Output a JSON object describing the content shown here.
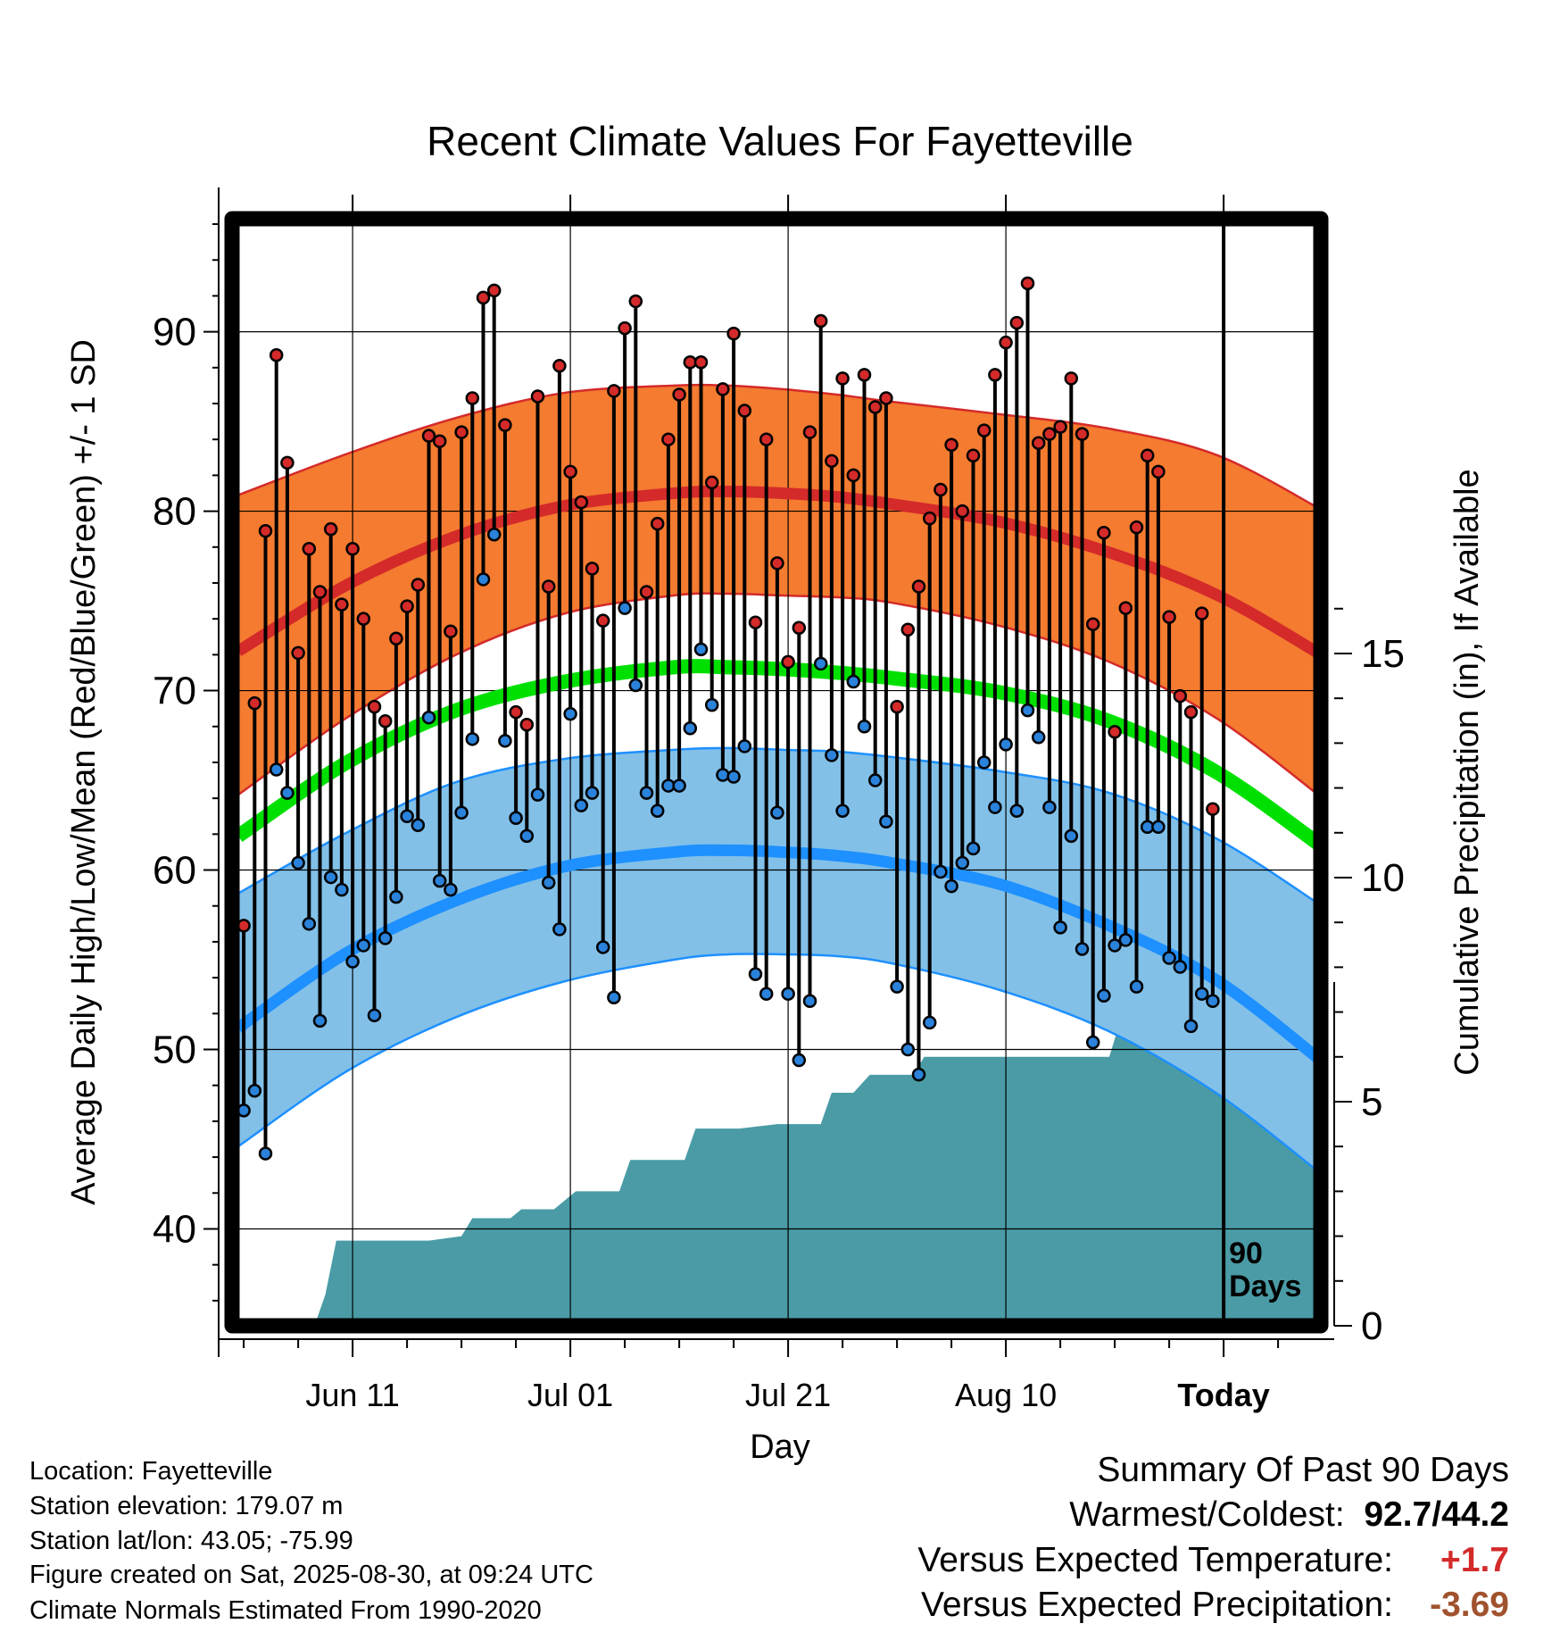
{
  "chart_data": {
    "type": "line",
    "title": "Recent Climate Values For Fayetteville",
    "xlabel": "Day",
    "ylabel": "Average Daily High/Low/Mean (Red/Blue/Green) +/- 1 SD",
    "y2label": "Cumulative Precipitation (in), If Available",
    "ylim": [
      34.6,
      96.3
    ],
    "y2lim": [
      0,
      24.7
    ],
    "yticks": [
      "40",
      "50",
      "60",
      "70",
      "80",
      "90"
    ],
    "y2ticks": [
      "0",
      "5",
      "10",
      "15"
    ],
    "xlim": [
      0,
      100
    ],
    "xticks": [
      {
        "day": 10.5,
        "label": "Jun 11"
      },
      {
        "day": 30.5,
        "label": "Jul 01"
      },
      {
        "day": 50.5,
        "label": "Jul 21"
      },
      {
        "day": 70.5,
        "label": "Aug 10"
      },
      {
        "day": 90.5,
        "label": "Today"
      }
    ],
    "today_marker": {
      "day": 90.5,
      "label_line1": "90",
      "label_line2": "Days"
    },
    "normal_days": [
      0,
      10,
      20,
      30,
      40,
      45,
      50,
      55,
      60,
      70,
      80,
      90,
      100
    ],
    "normal_high": [
      72.2,
      75.9,
      78.6,
      80.3,
      81.0,
      81.1,
      81.0,
      80.8,
      80.4,
      79.4,
      77.7,
      75.3,
      71.8
    ],
    "normal_high_upper": [
      80.9,
      83.2,
      85.2,
      86.6,
      87.0,
      87.0,
      86.8,
      86.5,
      86.1,
      85.4,
      84.6,
      83.1,
      79.9
    ],
    "normal_high_lower": [
      64.2,
      68.5,
      72.0,
      74.3,
      75.3,
      75.4,
      75.3,
      75.2,
      74.9,
      73.6,
      71.6,
      68.4,
      63.8
    ],
    "normal_mean": [
      61.9,
      66.0,
      68.9,
      70.5,
      71.3,
      71.3,
      71.2,
      71.0,
      70.7,
      69.9,
      68.3,
      65.4,
      61.1
    ],
    "normal_low": [
      51.2,
      55.4,
      58.3,
      60.2,
      61.0,
      61.1,
      61.0,
      60.8,
      60.4,
      59.2,
      56.9,
      53.8,
      49.1
    ],
    "normal_low_upper": [
      58.7,
      62.1,
      64.9,
      66.2,
      66.7,
      66.8,
      66.7,
      66.6,
      66.3,
      65.5,
      64.3,
      61.7,
      57.8
    ],
    "normal_low_lower": [
      44.6,
      48.8,
      51.8,
      53.8,
      55.0,
      55.3,
      55.3,
      55.2,
      54.8,
      53.3,
      51.0,
      47.5,
      42.8
    ],
    "daily_high": [
      56.9,
      69.3,
      78.9,
      88.7,
      82.7,
      72.1,
      77.9,
      75.5,
      79.0,
      74.8,
      77.9,
      74.0,
      69.1,
      68.3,
      72.9,
      74.7,
      75.9,
      84.2,
      83.9,
      73.3,
      84.4,
      86.3,
      91.9,
      92.3,
      84.8,
      68.8,
      68.1,
      86.4,
      75.8,
      88.1,
      82.2,
      80.5,
      76.8,
      73.9,
      86.7,
      90.2,
      91.7,
      75.5,
      79.3,
      84.0,
      86.5,
      88.3,
      88.3,
      81.6,
      86.8,
      89.9,
      85.6,
      73.8,
      84.0,
      77.1,
      71.6,
      73.5,
      84.4,
      90.6,
      82.8,
      87.4,
      82.0,
      87.6,
      85.8,
      86.3,
      69.1,
      73.4,
      75.8,
      79.6,
      81.2,
      83.7,
      80.0,
      83.1,
      84.5,
      87.6,
      89.4,
      90.5,
      92.7,
      83.8,
      84.3,
      84.7,
      87.4,
      84.3,
      73.7,
      78.8,
      67.7,
      74.6,
      79.1,
      83.1,
      82.2,
      74.1,
      69.7,
      68.8,
      74.3,
      63.4
    ],
    "daily_low": [
      46.6,
      47.7,
      44.2,
      65.6,
      64.3,
      60.4,
      57.0,
      51.6,
      59.6,
      58.9,
      54.9,
      55.8,
      51.9,
      56.2,
      58.5,
      63.0,
      62.5,
      68.5,
      59.4,
      58.9,
      63.2,
      67.3,
      76.2,
      78.7,
      67.2,
      62.9,
      61.9,
      64.2,
      59.3,
      56.7,
      68.7,
      63.6,
      64.3,
      55.7,
      52.9,
      74.6,
      70.3,
      64.3,
      63.3,
      64.7,
      64.7,
      67.9,
      72.3,
      69.2,
      65.3,
      65.2,
      66.9,
      54.2,
      53.1,
      63.2,
      53.1,
      49.4,
      52.7,
      71.5,
      66.4,
      63.3,
      70.5,
      68.0,
      65.0,
      62.7,
      53.5,
      50.0,
      48.6,
      51.5,
      59.9,
      59.1,
      60.4,
      61.2,
      66.0,
      63.5,
      67.0,
      63.3,
      68.9,
      67.4,
      63.5,
      56.8,
      61.9,
      55.6,
      50.4,
      53.0,
      55.8,
      56.1,
      53.5,
      62.4,
      62.4,
      55.1,
      54.6,
      51.3,
      53.1,
      52.7
    ],
    "precip_cumulative": [
      {
        "day": 0,
        "value": 0
      },
      {
        "day": 7,
        "value": 0
      },
      {
        "day": 8,
        "value": 0.7
      },
      {
        "day": 9,
        "value": 1.9
      },
      {
        "day": 17.5,
        "value": 1.9
      },
      {
        "day": 20.5,
        "value": 2.0
      },
      {
        "day": 21.5,
        "value": 2.4
      },
      {
        "day": 25,
        "value": 2.4
      },
      {
        "day": 26,
        "value": 2.6
      },
      {
        "day": 29,
        "value": 2.6
      },
      {
        "day": 31,
        "value": 3.0
      },
      {
        "day": 35,
        "value": 3.0
      },
      {
        "day": 36,
        "value": 3.7
      },
      {
        "day": 41,
        "value": 3.7
      },
      {
        "day": 42,
        "value": 4.4
      },
      {
        "day": 46,
        "value": 4.4
      },
      {
        "day": 49.5,
        "value": 4.5
      },
      {
        "day": 53.5,
        "value": 4.5
      },
      {
        "day": 54.5,
        "value": 5.2
      },
      {
        "day": 56.5,
        "value": 5.2
      },
      {
        "day": 58,
        "value": 5.6
      },
      {
        "day": 62,
        "value": 5.6
      },
      {
        "day": 63,
        "value": 6.0
      },
      {
        "day": 73,
        "value": 6.0
      },
      {
        "day": 80,
        "value": 6.0
      },
      {
        "day": 81,
        "value": 6.8
      },
      {
        "day": 84,
        "value": 6.8
      },
      {
        "day": 85,
        "value": 7.8
      },
      {
        "day": 90.5,
        "value": 7.9
      },
      {
        "day": 100,
        "value": 7.9
      }
    ]
  },
  "colors": {
    "high_band": "#f47b30",
    "high_line": "#d42a2a",
    "low_band": "#82c0e8",
    "low_line": "#1e90ff",
    "mean_line": "#00e000",
    "precip_fill": "#4a9ba5",
    "high_marker": "#d42a2a",
    "low_marker": "#2a82da"
  },
  "info": {
    "location": "Location: Fayetteville",
    "elevation": "Station elevation: 179.07 m",
    "latlon": "Station lat/lon: 43.05; -75.99",
    "created": "Figure created on Sat, 2025-08-30, at 09:24 UTC",
    "normals": "Climate Normals Estimated From 1990-2020"
  },
  "summary": {
    "heading": "Summary Of Past 90 Days",
    "warmest_label": "Warmest/Coldest:",
    "warmest_value": "92.7",
    "slash": "/",
    "coldest_value": "44.2",
    "temp_label": "Versus Expected Temperature:",
    "temp_value": "+1.7",
    "temp_color": "#d42a2a",
    "precip_label": "Versus Expected Precipitation:",
    "precip_value": "-3.69",
    "precip_color": "#a0522d"
  }
}
